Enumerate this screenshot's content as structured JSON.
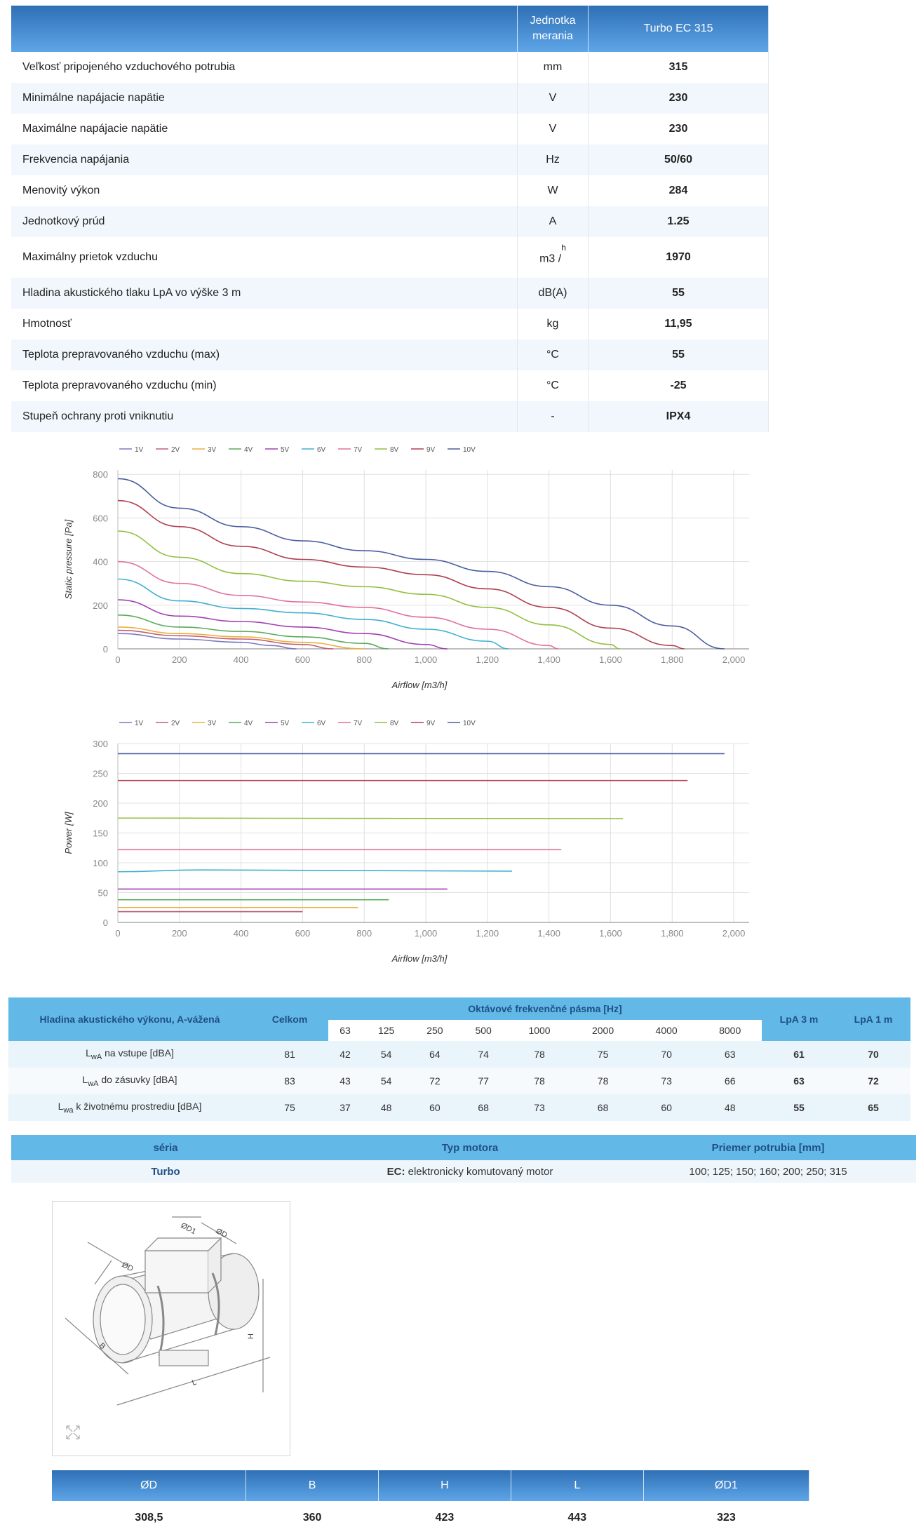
{
  "spec": {
    "header": {
      "unit": "Jednotka merania",
      "model": "Turbo EC 315"
    },
    "rows": [
      {
        "param": "Veľkosť pripojeného vzduchového potrubia",
        "unit": "mm",
        "value": "315"
      },
      {
        "param": "Minimálne napájacie napätie",
        "unit": "V",
        "value": "230"
      },
      {
        "param": "Maximálne napájacie napätie",
        "unit": "V",
        "value": "230"
      },
      {
        "param": "Frekvencia napájania",
        "unit": "Hz",
        "value": "50/60"
      },
      {
        "param": "Menovitý výkon",
        "unit": "W",
        "value": "284"
      },
      {
        "param": "Jednotkový prúd",
        "unit": "A",
        "value": "1.25"
      },
      {
        "param": "Maximálny prietok vzduchu",
        "unit": "m3 /",
        "unit_sup": "h",
        "value": "1970"
      },
      {
        "param": "Hladina akustického tlaku LpA vo výške 3 m",
        "unit": "dB(A)",
        "value": "55"
      },
      {
        "param": "Hmotnosť",
        "unit": "kg",
        "value": "11,95"
      },
      {
        "param": "Teplota prepravovaného vzduchu (max)",
        "unit": "°C",
        "value": "55"
      },
      {
        "param": "Teplota prepravovaného vzduchu (min)",
        "unit": "°C",
        "value": "-25"
      },
      {
        "param": "Stupeň ochrany proti vniknutiu",
        "unit": "-",
        "value": "IPX4"
      }
    ]
  },
  "chart_data": [
    {
      "type": "line",
      "xlabel": "Airflow [m3/h]",
      "ylabel": "Static pressure [Pa]",
      "xlim": [
        0,
        2050
      ],
      "ylim": [
        0,
        820
      ],
      "xticks": [
        0,
        200,
        400,
        600,
        800,
        1000,
        1200,
        1400,
        1600,
        1800,
        2000
      ],
      "xtick_labels": [
        "0",
        "200",
        "400",
        "600",
        "800",
        "1,000",
        "1,200",
        "1,400",
        "1,600",
        "1,800",
        "2,000"
      ],
      "yticks": [
        0,
        200,
        400,
        600,
        800
      ],
      "grid": true,
      "legend": "top-left",
      "series": [
        {
          "name": "1V",
          "color": "#7a7ac0",
          "points": [
            [
              0,
              70
            ],
            [
              200,
              45
            ],
            [
              400,
              30
            ],
            [
              500,
              15
            ],
            [
              580,
              0
            ]
          ]
        },
        {
          "name": "2V",
          "color": "#c06070",
          "points": [
            [
              0,
              85
            ],
            [
              200,
              60
            ],
            [
              400,
              45
            ],
            [
              600,
              20
            ],
            [
              700,
              0
            ]
          ]
        },
        {
          "name": "3V",
          "color": "#e8b040",
          "points": [
            [
              0,
              100
            ],
            [
              200,
              70
            ],
            [
              400,
              55
            ],
            [
              600,
              30
            ],
            [
              800,
              0
            ]
          ]
        },
        {
          "name": "4V",
          "color": "#5aaa5a",
          "points": [
            [
              0,
              155
            ],
            [
              200,
              100
            ],
            [
              400,
              80
            ],
            [
              600,
              55
            ],
            [
              800,
              25
            ],
            [
              880,
              0
            ]
          ]
        },
        {
          "name": "5V",
          "color": "#a040b0",
          "points": [
            [
              0,
              225
            ],
            [
              200,
              150
            ],
            [
              400,
              125
            ],
            [
              600,
              100
            ],
            [
              800,
              70
            ],
            [
              1000,
              20
            ],
            [
              1070,
              0
            ]
          ]
        },
        {
          "name": "6V",
          "color": "#40b0d0",
          "points": [
            [
              0,
              320
            ],
            [
              200,
              220
            ],
            [
              400,
              185
            ],
            [
              600,
              165
            ],
            [
              800,
              135
            ],
            [
              1000,
              90
            ],
            [
              1200,
              35
            ],
            [
              1270,
              0
            ]
          ]
        },
        {
          "name": "7V",
          "color": "#e070a0",
          "points": [
            [
              0,
              400
            ],
            [
              200,
              300
            ],
            [
              400,
              245
            ],
            [
              600,
              215
            ],
            [
              800,
              190
            ],
            [
              1000,
              145
            ],
            [
              1200,
              90
            ],
            [
              1400,
              15
            ],
            [
              1430,
              0
            ]
          ]
        },
        {
          "name": "8V",
          "color": "#90c040",
          "points": [
            [
              0,
              540
            ],
            [
              200,
              420
            ],
            [
              400,
              345
            ],
            [
              600,
              310
            ],
            [
              800,
              285
            ],
            [
              1000,
              250
            ],
            [
              1200,
              190
            ],
            [
              1400,
              110
            ],
            [
              1600,
              20
            ],
            [
              1630,
              0
            ]
          ]
        },
        {
          "name": "9V",
          "color": "#b04050",
          "points": [
            [
              0,
              680
            ],
            [
              200,
              560
            ],
            [
              400,
              470
            ],
            [
              600,
              410
            ],
            [
              800,
              375
            ],
            [
              1000,
              340
            ],
            [
              1200,
              275
            ],
            [
              1400,
              190
            ],
            [
              1600,
              95
            ],
            [
              1800,
              15
            ],
            [
              1840,
              0
            ]
          ]
        },
        {
          "name": "10V",
          "color": "#4a5ea0",
          "points": [
            [
              0,
              780
            ],
            [
              200,
              645
            ],
            [
              400,
              560
            ],
            [
              600,
              495
            ],
            [
              800,
              450
            ],
            [
              1000,
              410
            ],
            [
              1200,
              355
            ],
            [
              1400,
              285
            ],
            [
              1600,
              200
            ],
            [
              1800,
              105
            ],
            [
              1970,
              0
            ]
          ]
        }
      ]
    },
    {
      "type": "line",
      "xlabel": "Airflow [m3/h]",
      "ylabel": "Power [W]",
      "xlim": [
        0,
        2050
      ],
      "ylim": [
        0,
        300
      ],
      "xticks": [
        0,
        200,
        400,
        600,
        800,
        1000,
        1200,
        1400,
        1600,
        1800,
        2000
      ],
      "xtick_labels": [
        "0",
        "200",
        "400",
        "600",
        "800",
        "1,000",
        "1,200",
        "1,400",
        "1,600",
        "1,800",
        "2,000"
      ],
      "yticks": [
        0,
        50,
        100,
        150,
        200,
        250,
        300
      ],
      "grid": true,
      "legend": "top-left",
      "series": [
        {
          "name": "1V",
          "color": "#7a7ac0",
          "points": [
            [
              0,
              18
            ],
            [
              600,
              18
            ]
          ]
        },
        {
          "name": "2V",
          "color": "#c06070",
          "points": [
            [
              0,
              18
            ],
            [
              600,
              18
            ]
          ]
        },
        {
          "name": "3V",
          "color": "#e8b040",
          "points": [
            [
              0,
              25
            ],
            [
              780,
              25
            ]
          ]
        },
        {
          "name": "4V",
          "color": "#5aaa5a",
          "points": [
            [
              0,
              38
            ],
            [
              880,
              38
            ]
          ]
        },
        {
          "name": "5V",
          "color": "#a040b0",
          "points": [
            [
              0,
              56
            ],
            [
              1070,
              56
            ]
          ]
        },
        {
          "name": "6V",
          "color": "#40b0d0",
          "points": [
            [
              0,
              85
            ],
            [
              270,
              88
            ],
            [
              1280,
              86
            ]
          ]
        },
        {
          "name": "7V",
          "color": "#e070a0",
          "points": [
            [
              0,
              122
            ],
            [
              1440,
              122
            ]
          ]
        },
        {
          "name": "8V",
          "color": "#90c040",
          "points": [
            [
              0,
              175
            ],
            [
              1640,
              174
            ]
          ]
        },
        {
          "name": "9V",
          "color": "#b04050",
          "points": [
            [
              0,
              238
            ],
            [
              1850,
              238
            ]
          ]
        },
        {
          "name": "10V",
          "color": "#4a5ea0",
          "points": [
            [
              0,
              283
            ],
            [
              1970,
              283
            ]
          ]
        }
      ]
    }
  ],
  "acoustic": {
    "title": "Hladina akustického výkonu, A-vážená",
    "total": "Celkom",
    "octave_title": "Oktávové frekvenčné pásma [Hz]",
    "bands": [
      "63",
      "125",
      "250",
      "500",
      "1000",
      "2000",
      "4000",
      "8000"
    ],
    "lpa3": "LpA 3 m",
    "lpa1": "LpA 1 m",
    "rows": [
      {
        "l": "L",
        "sub": "wA",
        "label": "na vstupe [dBA]",
        "total": "81",
        "vals": [
          "42",
          "54",
          "64",
          "74",
          "78",
          "75",
          "70",
          "63"
        ],
        "lpa3": "61",
        "lpa1": "70"
      },
      {
        "l": "L",
        "sub": "wA",
        "label": "do zásuvky [dBA]",
        "total": "83",
        "vals": [
          "43",
          "54",
          "72",
          "77",
          "78",
          "78",
          "73",
          "66"
        ],
        "lpa3": "63",
        "lpa1": "72"
      },
      {
        "l": "L",
        "sub": "wa",
        "label": "k životnému prostrediu [dBA]",
        "total": "75",
        "vals": [
          "37",
          "48",
          "60",
          "68",
          "73",
          "68",
          "60",
          "48"
        ],
        "lpa3": "55",
        "lpa1": "65"
      }
    ]
  },
  "series_table": {
    "headers": [
      "séria",
      "Typ motora",
      "Priemer potrubia [mm]"
    ],
    "series": "Turbo",
    "motor_bold": "EC:",
    "motor_text": " elektronicky komutovaný motor",
    "diameters": "100; 125; 150; 160; 200; 250; 315"
  },
  "diagram": {
    "labels": {
      "d1": "ØD1",
      "d_top": "ØD",
      "d_left": "ØD",
      "b": "B",
      "h": "H",
      "l": "L"
    },
    "icon": "expand-icon"
  },
  "dims": {
    "headers": [
      "ØD",
      "B",
      "H",
      "L",
      "ØD1"
    ],
    "values": [
      "308,5",
      "360",
      "423",
      "443",
      "323"
    ]
  }
}
